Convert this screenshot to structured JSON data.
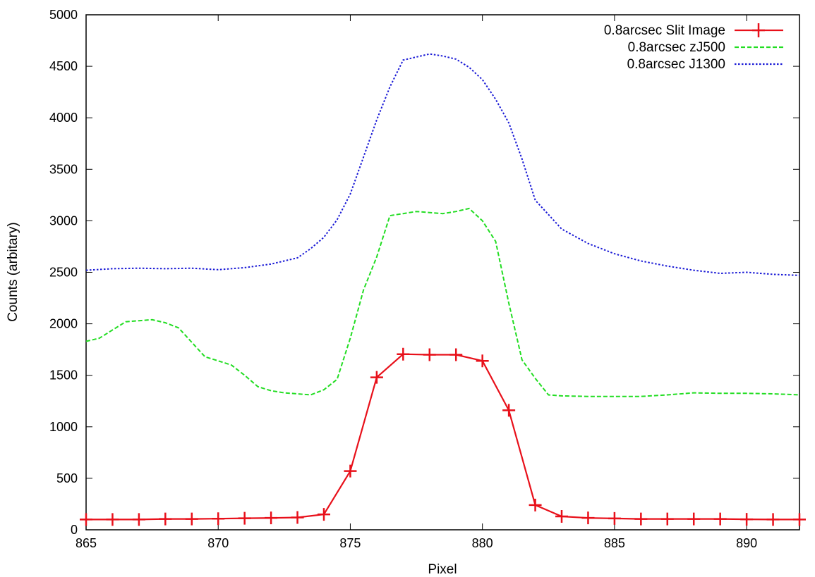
{
  "chart_data": {
    "type": "line",
    "title": "",
    "xlabel": "Pixel",
    "ylabel": "Counts (arbitary)",
    "xlim": [
      865,
      892
    ],
    "ylim": [
      0,
      5000
    ],
    "xticks": [
      865,
      870,
      875,
      880,
      885,
      890
    ],
    "yticks": [
      0,
      500,
      1000,
      1500,
      2000,
      2500,
      3000,
      3500,
      4000,
      4500,
      5000
    ],
    "grid": false,
    "legend_position": "top-right",
    "series": [
      {
        "name": "0.8arcsec Slit Image",
        "color": "#e8101a",
        "style": "solid-with-plus-markers",
        "x": [
          865,
          866,
          867,
          868,
          869,
          870,
          871,
          872,
          873,
          874,
          875,
          876,
          877,
          878,
          879,
          880,
          881,
          882,
          883,
          884,
          885,
          886,
          887,
          888,
          889,
          890,
          891,
          892
        ],
        "y": [
          100,
          100,
          100,
          105,
          105,
          108,
          112,
          115,
          120,
          150,
          570,
          1480,
          1705,
          1700,
          1700,
          1640,
          1160,
          240,
          130,
          115,
          110,
          105,
          105,
          105,
          105,
          102,
          100,
          100
        ]
      },
      {
        "name": "0.8arcsec zJ500",
        "color": "#22dd22",
        "style": "dashed",
        "x": [
          865,
          865.5,
          866,
          866.5,
          867,
          867.5,
          868,
          868.5,
          869,
          869.5,
          870,
          870.5,
          871,
          871.5,
          872,
          872.5,
          873,
          873.5,
          874,
          874.5,
          875,
          875.5,
          876,
          876.5,
          877,
          877.5,
          878,
          878.5,
          879,
          879.5,
          880,
          880.5,
          881,
          881.5,
          882,
          882.5,
          883,
          884,
          885,
          886,
          887,
          888,
          889,
          890,
          891,
          892
        ],
        "y": [
          1830,
          1860,
          1940,
          2020,
          2030,
          2040,
          2010,
          1960,
          1820,
          1680,
          1640,
          1600,
          1500,
          1390,
          1350,
          1330,
          1320,
          1310,
          1360,
          1460,
          1860,
          2330,
          2650,
          3050,
          3070,
          3090,
          3080,
          3070,
          3090,
          3120,
          3000,
          2800,
          2200,
          1650,
          1470,
          1310,
          1300,
          1295,
          1295,
          1295,
          1310,
          1330,
          1325,
          1325,
          1320,
          1310
        ]
      },
      {
        "name": "0.8arcsec J1300",
        "color": "#1a1ad6",
        "style": "dotted",
        "x": [
          865,
          866,
          867,
          868,
          869,
          870,
          871,
          872,
          873,
          873.5,
          874,
          874.5,
          875,
          875.5,
          876,
          876.5,
          877,
          877.5,
          878,
          878.5,
          879,
          879.5,
          880,
          880.5,
          881,
          881.5,
          882,
          882.5,
          883,
          884,
          885,
          886,
          887,
          888,
          889,
          890,
          891,
          892
        ],
        "y": [
          2520,
          2535,
          2540,
          2535,
          2540,
          2525,
          2545,
          2580,
          2640,
          2730,
          2840,
          3010,
          3260,
          3620,
          3980,
          4300,
          4560,
          4590,
          4620,
          4600,
          4570,
          4490,
          4370,
          4180,
          3950,
          3600,
          3200,
          3060,
          2920,
          2780,
          2680,
          2610,
          2560,
          2520,
          2490,
          2500,
          2480,
          2470
        ]
      }
    ]
  }
}
